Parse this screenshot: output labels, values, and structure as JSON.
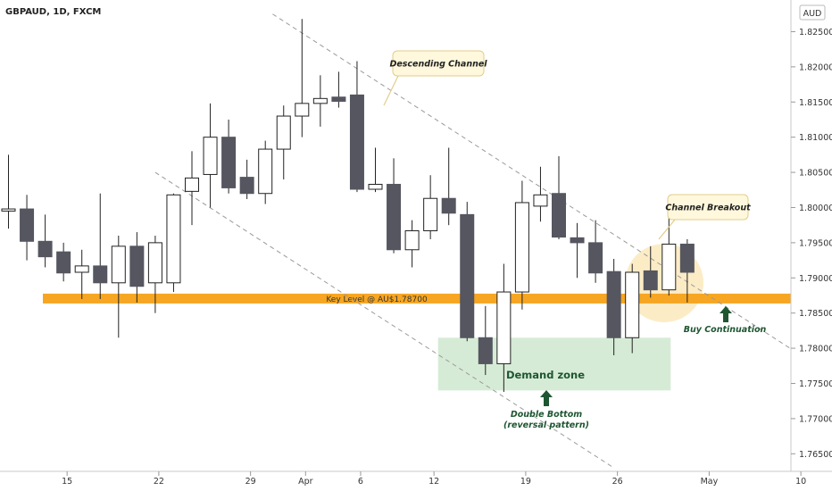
{
  "header": {
    "symbol": "GBPAUD, 1D, FXCM"
  },
  "currency_badge": "AUD",
  "colors": {
    "bull_fill": "#ffffff",
    "bear_fill": "#555660",
    "candle_stroke": "#222222",
    "key_level": "#f6a623",
    "demand_zone": "#cfe8cf",
    "breakout_circle": "#fbe5b3",
    "callout_fill": "#fff8dc",
    "arrow_green": "#1e5631",
    "channel_line": "#9a9a9a"
  },
  "chart_data": {
    "type": "candlestick",
    "y_axis": {
      "min": 1.7625,
      "max": 1.8295,
      "ticks": [
        "1.82500",
        "1.82000",
        "1.81500",
        "1.81000",
        "1.80500",
        "1.80000",
        "1.79500",
        "1.79000",
        "1.78500",
        "1.78000",
        "1.77500",
        "1.77000",
        "1.76500"
      ]
    },
    "x_axis": {
      "ticks": [
        {
          "label": "15",
          "index": 3
        },
        {
          "label": "22",
          "index": 8
        },
        {
          "label": "29",
          "index": 13
        },
        {
          "label": "Apr",
          "index": 16
        },
        {
          "label": "6",
          "index": 19
        },
        {
          "label": "12",
          "index": 23
        },
        {
          "label": "19",
          "index": 28
        },
        {
          "label": "26",
          "index": 33
        },
        {
          "label": "May",
          "index": 38
        },
        {
          "label": "10",
          "index": 43
        }
      ]
    },
    "candles": [
      {
        "o": 1.7995,
        "h": 1.8075,
        "l": 1.797,
        "c": 1.7998
      },
      {
        "o": 1.7998,
        "h": 1.8018,
        "l": 1.7925,
        "c": 1.7952
      },
      {
        "o": 1.7952,
        "h": 1.799,
        "l": 1.7915,
        "c": 1.793
      },
      {
        "o": 1.7937,
        "h": 1.795,
        "l": 1.7895,
        "c": 1.7907
      },
      {
        "o": 1.7908,
        "h": 1.794,
        "l": 1.787,
        "c": 1.7917
      },
      {
        "o": 1.7917,
        "h": 1.802,
        "l": 1.787,
        "c": 1.7893
      },
      {
        "o": 1.7893,
        "h": 1.796,
        "l": 1.7815,
        "c": 1.7945
      },
      {
        "o": 1.7945,
        "h": 1.7965,
        "l": 1.7865,
        "c": 1.7888
      },
      {
        "o": 1.7893,
        "h": 1.796,
        "l": 1.785,
        "c": 1.795
      },
      {
        "o": 1.7893,
        "h": 1.802,
        "l": 1.788,
        "c": 1.8018
      },
      {
        "o": 1.8023,
        "h": 1.808,
        "l": 1.7975,
        "c": 1.8042
      },
      {
        "o": 1.8047,
        "h": 1.8148,
        "l": 1.8,
        "c": 1.81
      },
      {
        "o": 1.81,
        "h": 1.8125,
        "l": 1.802,
        "c": 1.8028
      },
      {
        "o": 1.8043,
        "h": 1.8068,
        "l": 1.8012,
        "c": 1.802
      },
      {
        "o": 1.802,
        "h": 1.8095,
        "l": 1.8005,
        "c": 1.8083
      },
      {
        "o": 1.8083,
        "h": 1.8145,
        "l": 1.804,
        "c": 1.813
      },
      {
        "o": 1.813,
        "h": 1.8268,
        "l": 1.81,
        "c": 1.8148
      },
      {
        "o": 1.8148,
        "h": 1.8188,
        "l": 1.8115,
        "c": 1.8155
      },
      {
        "o": 1.8157,
        "h": 1.8193,
        "l": 1.8142,
        "c": 1.8151
      },
      {
        "o": 1.816,
        "h": 1.8208,
        "l": 1.8022,
        "c": 1.8026
      },
      {
        "o": 1.8026,
        "h": 1.8085,
        "l": 1.8022,
        "c": 1.8033
      },
      {
        "o": 1.8033,
        "h": 1.807,
        "l": 1.7935,
        "c": 1.794
      },
      {
        "o": 1.794,
        "h": 1.7982,
        "l": 1.7915,
        "c": 1.7967
      },
      {
        "o": 1.7967,
        "h": 1.8046,
        "l": 1.7955,
        "c": 1.8013
      },
      {
        "o": 1.8013,
        "h": 1.8085,
        "l": 1.7975,
        "c": 1.7992
      },
      {
        "o": 1.799,
        "h": 1.8008,
        "l": 1.781,
        "c": 1.7815
      },
      {
        "o": 1.7815,
        "h": 1.786,
        "l": 1.7762,
        "c": 1.7778
      },
      {
        "o": 1.7778,
        "h": 1.792,
        "l": 1.7738,
        "c": 1.788
      },
      {
        "o": 1.788,
        "h": 1.8038,
        "l": 1.7855,
        "c": 1.8007
      },
      {
        "o": 1.8002,
        "h": 1.8058,
        "l": 1.798,
        "c": 1.8018
      },
      {
        "o": 1.802,
        "h": 1.8073,
        "l": 1.7955,
        "c": 1.7958
      },
      {
        "o": 1.7957,
        "h": 1.7978,
        "l": 1.79,
        "c": 1.795
      },
      {
        "o": 1.795,
        "h": 1.7982,
        "l": 1.7893,
        "c": 1.7907
      },
      {
        "o": 1.7909,
        "h": 1.7927,
        "l": 1.779,
        "c": 1.7815
      },
      {
        "o": 1.7815,
        "h": 1.792,
        "l": 1.7793,
        "c": 1.7908
      },
      {
        "o": 1.791,
        "h": 1.7945,
        "l": 1.7872,
        "c": 1.7883
      },
      {
        "o": 1.7883,
        "h": 1.7998,
        "l": 1.7875,
        "c": 1.7948
      },
      {
        "o": 1.7948,
        "h": 1.7955,
        "l": 1.7865,
        "c": 1.7908
      }
    ],
    "key_level": {
      "value": 1.787,
      "label": "Key Level @ AU$1.78700"
    },
    "demand_zone": {
      "label": "Demand zone",
      "top": 1.7815,
      "bottom": 1.774,
      "from_index": 24,
      "to_index": 36
    },
    "channel_lines": [
      {
        "from": {
          "index": 14.4,
          "price": 1.8275
        },
        "to": {
          "index": 42.6,
          "price": 1.78
        }
      },
      {
        "from": {
          "index": 8.0,
          "price": 1.805
        },
        "to": {
          "index": 33.0,
          "price": 1.763
        }
      }
    ],
    "annotations": [
      {
        "label": "Descending Channel",
        "kind": "callout"
      },
      {
        "label": "Channel Breakout",
        "kind": "callout"
      },
      {
        "label": "Buy Continuation",
        "kind": "arrow"
      },
      {
        "label": "Double Bottom",
        "label2": "(reversal pattern)",
        "kind": "arrow"
      }
    ]
  }
}
